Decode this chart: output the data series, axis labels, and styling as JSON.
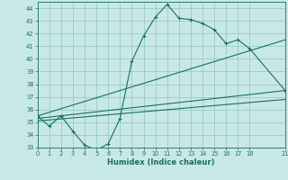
{
  "xlabel": "Humidex (Indice chaleur)",
  "bg_color": "#c8e8e8",
  "grid_color": "#90c4c4",
  "line_color": "#1a6e62",
  "xlim": [
    0,
    21
  ],
  "ylim": [
    33,
    44.5
  ],
  "yticks": [
    33,
    34,
    35,
    36,
    37,
    38,
    39,
    40,
    41,
    42,
    43,
    44
  ],
  "xticks": [
    0,
    1,
    2,
    3,
    4,
    5,
    6,
    7,
    8,
    9,
    10,
    11,
    12,
    13,
    14,
    15,
    16,
    17,
    18,
    21
  ],
  "xtick_labels": [
    "0",
    "1",
    "2",
    "3",
    "4",
    "5",
    "6",
    "7",
    "8",
    "9",
    "10",
    "11",
    "12",
    "13",
    "14",
    "15",
    "16",
    "17",
    "18",
    "21"
  ],
  "series1_x": [
    0,
    1,
    2,
    3,
    4,
    5,
    6,
    7,
    8,
    9,
    10,
    11,
    12,
    13,
    14,
    15,
    16,
    17,
    18,
    21
  ],
  "series1_y": [
    35.5,
    34.7,
    35.5,
    34.3,
    33.2,
    32.8,
    33.3,
    35.3,
    39.8,
    41.8,
    43.3,
    44.3,
    43.2,
    43.1,
    42.8,
    42.3,
    41.2,
    41.5,
    40.8,
    37.5
  ],
  "series2_x": [
    0,
    21
  ],
  "series2_y": [
    35.5,
    41.5
  ],
  "series3_x": [
    0,
    21
  ],
  "series3_y": [
    35.3,
    37.5
  ],
  "series4_x": [
    0,
    21
  ],
  "series4_y": [
    35.1,
    36.8
  ]
}
